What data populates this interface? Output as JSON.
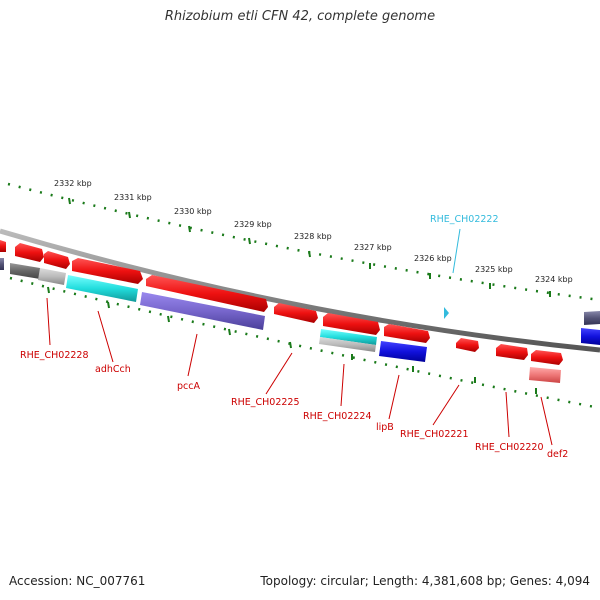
{
  "title": "Rhizobium etli CFN 42, complete genome",
  "footer": {
    "accession": "Accession: NC_007761",
    "topology": "Topology: circular; Length: 4,381,608 bp; Genes: 4,094"
  },
  "ticks": [
    {
      "label": "2332 kbp"
    },
    {
      "label": "2331 kbp"
    },
    {
      "label": "2330 kbp"
    },
    {
      "label": "2329 kbp"
    },
    {
      "label": "2328 kbp"
    },
    {
      "label": "2327 kbp"
    },
    {
      "label": "2326 kbp"
    },
    {
      "label": "2325 kbp"
    },
    {
      "label": "2324 kbp"
    }
  ],
  "gene_labels": [
    {
      "text": "RHE_CH02228",
      "color": "#cc0000"
    },
    {
      "text": "adhCch",
      "color": "#cc0000"
    },
    {
      "text": "pccA",
      "color": "#cc0000"
    },
    {
      "text": "RHE_CH02225",
      "color": "#cc0000"
    },
    {
      "text": "RHE_CH02224",
      "color": "#cc0000"
    },
    {
      "text": "lipB",
      "color": "#cc0000"
    },
    {
      "text": "RHE_CH02221",
      "color": "#cc0000"
    },
    {
      "text": "RHE_CH02220",
      "color": "#cc0000"
    },
    {
      "text": "def2",
      "color": "#cc0000"
    },
    {
      "text": "RHE_CH02222",
      "color": "#33bbdd"
    }
  ],
  "colors": {
    "backbone": "#888888",
    "tick_marks": "#1a7a1a",
    "gene_red": "#ee1111",
    "gene_cyan": "#22dddd",
    "gene_purple": "#7766cc",
    "gene_blue": "#1111dd",
    "gene_gray": "#666666",
    "gene_pink": "#ee7777"
  }
}
